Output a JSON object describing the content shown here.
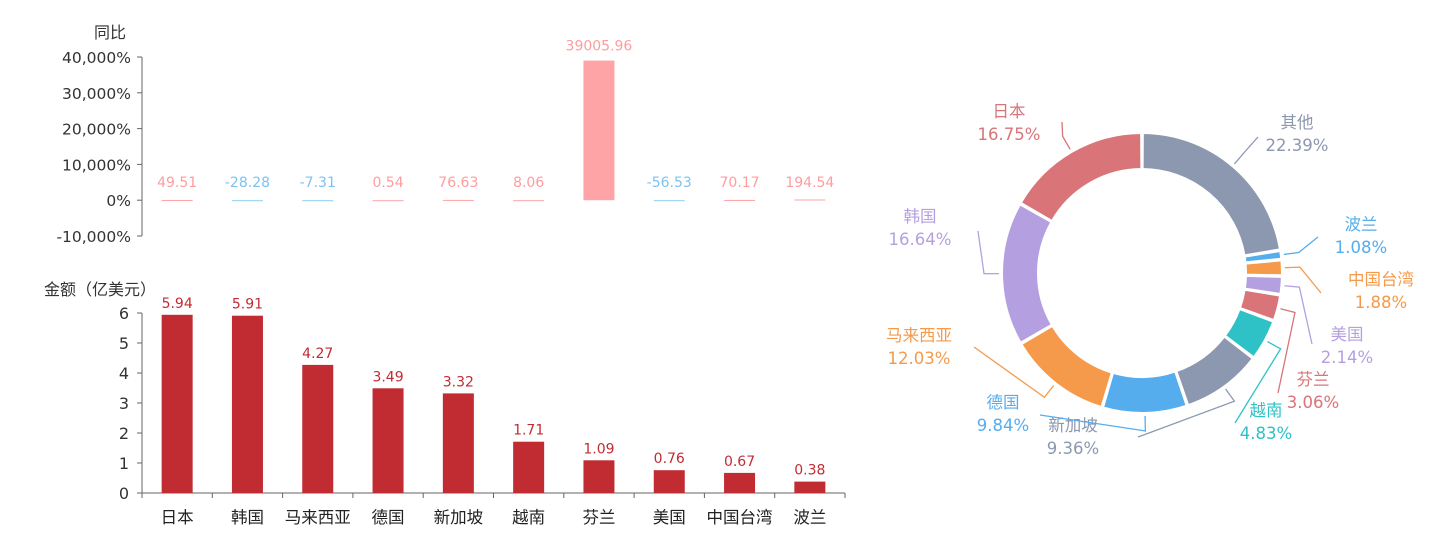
{
  "chart_data": [
    {
      "type": "bar",
      "ylabel": "同比",
      "categories": [
        "日本",
        "韩国",
        "马来西亚",
        "德国",
        "新加坡",
        "越南",
        "芬兰",
        "美国",
        "中国台湾",
        "波兰"
      ],
      "values": [
        49.51,
        -28.28,
        -7.31,
        0.54,
        76.63,
        8.06,
        39005.96,
        -56.53,
        70.17,
        194.54
      ],
      "value_labels": [
        "49.51",
        "-28.28",
        "-7.31",
        "0.54",
        "76.63",
        "8.06",
        "39005.96",
        "-56.53",
        "70.17",
        "194.54"
      ],
      "ylim": [
        -10000,
        40000
      ],
      "ticks": [
        40000,
        30000,
        20000,
        10000,
        0,
        -10000
      ],
      "tick_labels": [
        "40,000%",
        "30,000%",
        "20,000%",
        "10,000%",
        "0%",
        "-10,000%"
      ],
      "colors": {
        "positive": "#ffa4a6",
        "negative": "#8ecdf4",
        "label_positive": "#ff9c9e",
        "label_negative": "#7cc3f0"
      }
    },
    {
      "type": "bar",
      "ylabel": "金额（亿美元）",
      "categories": [
        "日本",
        "韩国",
        "马来西亚",
        "德国",
        "新加坡",
        "越南",
        "芬兰",
        "美国",
        "中国台湾",
        "波兰"
      ],
      "values": [
        5.94,
        5.91,
        4.27,
        3.49,
        3.32,
        1.71,
        1.09,
        0.76,
        0.67,
        0.38
      ],
      "value_labels": [
        "5.94",
        "5.91",
        "4.27",
        "3.49",
        "3.32",
        "1.71",
        "1.09",
        "0.76",
        "0.67",
        "0.38"
      ],
      "ylim": [
        0,
        6
      ],
      "ticks": [
        0,
        1,
        2,
        3,
        4,
        5,
        6
      ],
      "tick_labels": [
        "0",
        "1",
        "2",
        "3",
        "4",
        "5",
        "6"
      ],
      "colors": {
        "bar": "#c12c33",
        "label": "#c12c33"
      }
    },
    {
      "type": "pie",
      "style": "donut",
      "slices": [
        {
          "name": "其他",
          "value": 22.39,
          "label": "22.39%",
          "color": "#8c97b0"
        },
        {
          "name": "波兰",
          "value": 1.08,
          "label": "1.08%",
          "color": "#55adee"
        },
        {
          "name": "中国台湾",
          "value": 1.88,
          "label": "1.88%",
          "color": "#f59a4b"
        },
        {
          "name": "美国",
          "value": 2.14,
          "label": "2.14%",
          "color": "#b4a0e0"
        },
        {
          "name": "芬兰",
          "value": 3.06,
          "label": "3.06%",
          "color": "#d97479"
        },
        {
          "name": "越南",
          "value": 4.83,
          "label": "4.83%",
          "color": "#2ec2c6"
        },
        {
          "name": "新加坡",
          "value": 9.36,
          "label": "9.36%",
          "color": "#8c97b0"
        },
        {
          "name": "德国",
          "value": 9.84,
          "label": "9.84%",
          "color": "#55adee"
        },
        {
          "name": "马来西亚",
          "value": 12.03,
          "label": "12.03%",
          "color": "#f59a4b"
        },
        {
          "name": "韩国",
          "value": 16.64,
          "label": "16.64%",
          "color": "#b4a0e0"
        },
        {
          "name": "日本",
          "value": 16.75,
          "label": "16.75%",
          "color": "#d97479"
        }
      ]
    }
  ]
}
